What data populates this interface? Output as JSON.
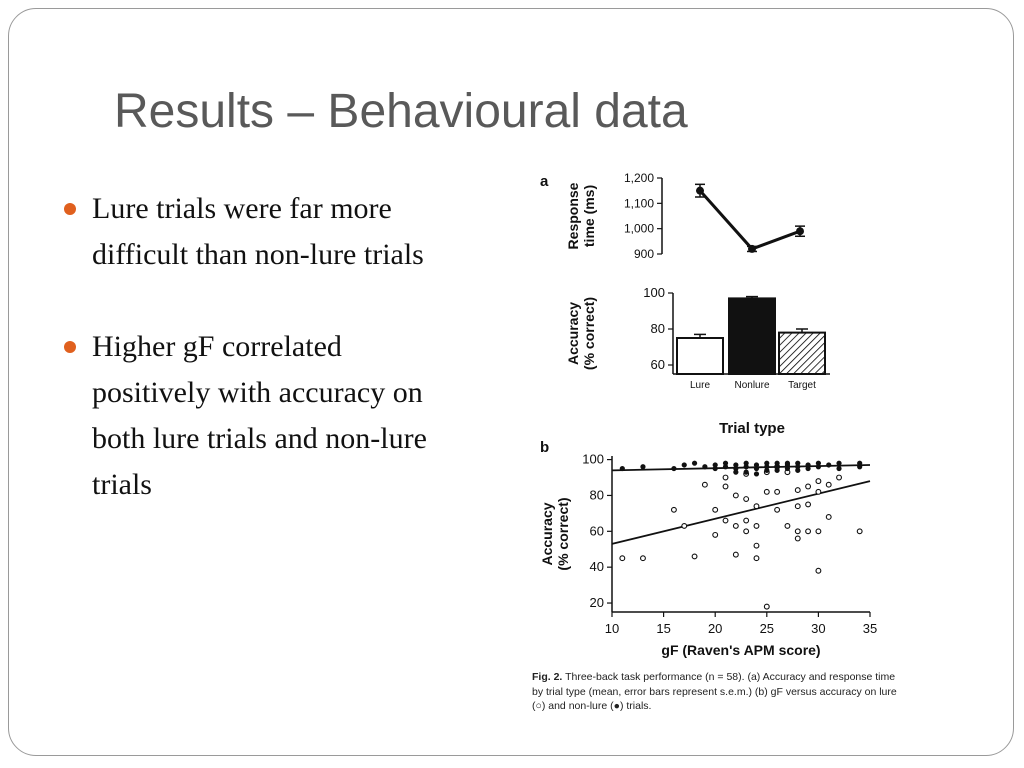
{
  "slide": {
    "title": "Results – Behavioural data",
    "accent_color": "#e0601e",
    "bullets": [
      {
        "text": "Lure trials were far more difficult than non-lure trials"
      },
      {
        "text": "Higher gF correlated positively with accuracy on both lure trials and non-lure trials"
      }
    ]
  },
  "figure": {
    "panel_a_label": "a",
    "panel_b_label": "b",
    "caption_label": "Fig. 2.",
    "caption_text": "Three-back task performance (n = 58). (a) Accuracy and response time by trial type (mean, error bars represent s.e.m.) (b) gF versus accuracy on lure (○) and non-lure (●) trials."
  },
  "chart_data": [
    {
      "type": "line",
      "panel": "a",
      "ylabel": "Response time (ms)",
      "categories": [
        "Lure",
        "Nonlure",
        "Target"
      ],
      "values": [
        1150,
        920,
        990
      ],
      "errors": [
        25,
        10,
        20
      ],
      "yticks": [
        "1,200",
        "1,100",
        "1,000",
        "900"
      ],
      "ylim": [
        900,
        1200
      ]
    },
    {
      "type": "bar",
      "panel": "a",
      "ylabel": "Accuracy (% correct)",
      "categories": [
        "Lure",
        "Nonlure",
        "Target"
      ],
      "values": [
        75,
        97,
        78
      ],
      "errors": [
        2,
        1,
        2
      ],
      "fills": [
        "white",
        "black",
        "hatched"
      ],
      "yticks": [
        "100",
        "80",
        "60"
      ],
      "ylim": [
        55,
        100
      ]
    },
    {
      "type": "scatter",
      "panel": "b",
      "title": "Trial type",
      "xlabel": "gF (Raven's APM score)",
      "ylabel": "Accuracy (% correct)",
      "xlim": [
        10,
        35
      ],
      "ylim": [
        15,
        102
      ],
      "xticks": [
        "10",
        "15",
        "20",
        "25",
        "30",
        "35"
      ],
      "yticks": [
        "100",
        "80",
        "60",
        "40",
        "20"
      ],
      "series": [
        {
          "name": "lure",
          "marker": "open",
          "points": [
            [
              11,
              45
            ],
            [
              13,
              45
            ],
            [
              16,
              72
            ],
            [
              17,
              63
            ],
            [
              18,
              46
            ],
            [
              19,
              86
            ],
            [
              20,
              72
            ],
            [
              20,
              58
            ],
            [
              21,
              66
            ],
            [
              21,
              85
            ],
            [
              22,
              80
            ],
            [
              22,
              63
            ],
            [
              22,
              47
            ],
            [
              23,
              60
            ],
            [
              23,
              66
            ],
            [
              23,
              92
            ],
            [
              24,
              74
            ],
            [
              24,
              63
            ],
            [
              24,
              52
            ],
            [
              24,
              45
            ],
            [
              25,
              18
            ],
            [
              25,
              82
            ],
            [
              25,
              93
            ],
            [
              26,
              96
            ],
            [
              26,
              82
            ],
            [
              27,
              93
            ],
            [
              27,
              63
            ],
            [
              28,
              74
            ],
            [
              28,
              83
            ],
            [
              28,
              60
            ],
            [
              28,
              56
            ],
            [
              29,
              60
            ],
            [
              29,
              85
            ],
            [
              29,
              75
            ],
            [
              30,
              82
            ],
            [
              30,
              88
            ],
            [
              30,
              60
            ],
            [
              30,
              38
            ],
            [
              31,
              68
            ],
            [
              31,
              86
            ],
            [
              32,
              90
            ],
            [
              34,
              60
            ],
            [
              23,
              78
            ],
            [
              21,
              90
            ],
            [
              26,
              72
            ]
          ]
        },
        {
          "name": "non-lure",
          "marker": "filled",
          "points": [
            [
              11,
              95
            ],
            [
              13,
              96
            ],
            [
              16,
              95
            ],
            [
              17,
              97
            ],
            [
              18,
              98
            ],
            [
              19,
              96
            ],
            [
              20,
              97
            ],
            [
              20,
              95
            ],
            [
              21,
              98
            ],
            [
              21,
              96
            ],
            [
              22,
              97
            ],
            [
              22,
              95
            ],
            [
              22,
              93
            ],
            [
              23,
              98
            ],
            [
              23,
              96
            ],
            [
              24,
              97
            ],
            [
              24,
              95
            ],
            [
              24,
              92
            ],
            [
              25,
              98
            ],
            [
              25,
              96
            ],
            [
              25,
              94
            ],
            [
              26,
              98
            ],
            [
              26,
              96
            ],
            [
              27,
              97
            ],
            [
              27,
              95
            ],
            [
              28,
              98
            ],
            [
              28,
              96
            ],
            [
              28,
              94
            ],
            [
              29,
              97
            ],
            [
              29,
              95
            ],
            [
              30,
              98
            ],
            [
              30,
              96
            ],
            [
              31,
              97
            ],
            [
              32,
              95
            ],
            [
              32,
              98
            ],
            [
              34,
              96
            ],
            [
              34,
              98
            ],
            [
              23,
              93
            ],
            [
              26,
              94
            ],
            [
              27,
              98
            ]
          ]
        }
      ],
      "regression": [
        {
          "name": "lure fit",
          "x": [
            10,
            35
          ],
          "y": [
            53,
            88
          ]
        },
        {
          "name": "non-lure fit",
          "x": [
            10,
            35
          ],
          "y": [
            94,
            97
          ]
        }
      ]
    }
  ]
}
